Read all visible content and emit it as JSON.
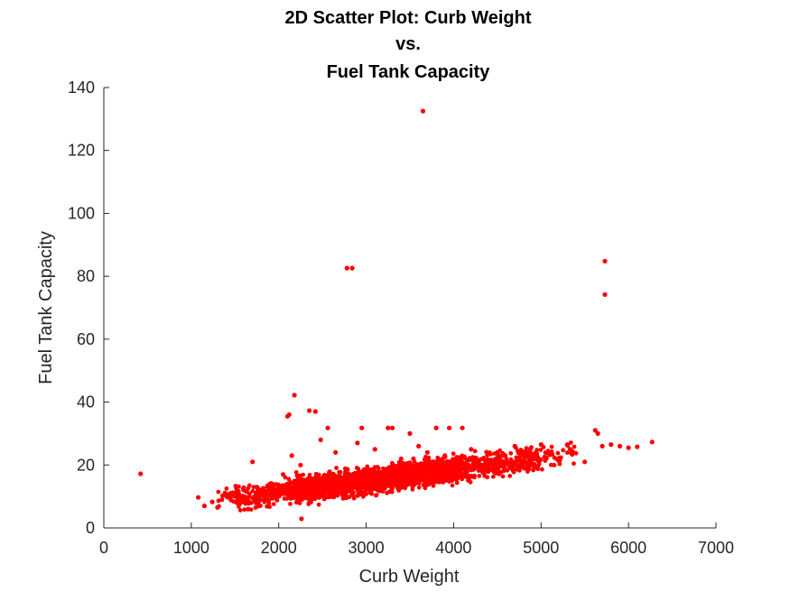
{
  "chart_data": {
    "type": "scatter",
    "title": [
      "2D Scatter Plot: Curb Weight",
      "vs.",
      "Fuel Tank Capacity"
    ],
    "xlabel": "Curb Weight",
    "ylabel": "Fuel Tank Capacity",
    "xlim": [
      0,
      7000
    ],
    "ylim": [
      0,
      140
    ],
    "xticks": [
      "0",
      "1000",
      "2000",
      "3000",
      "4000",
      "5000",
      "6000",
      "7000"
    ],
    "yticks": [
      "0",
      "20",
      "40",
      "60",
      "80",
      "100",
      "120",
      "140"
    ],
    "grid": false,
    "marker_color": "#ff0000",
    "series": [
      {
        "values": [
          [
            420,
            17.2
          ],
          [
            1080,
            9.7
          ],
          [
            1150,
            7.0
          ],
          [
            1240,
            8.3
          ],
          [
            1300,
            6.5
          ],
          [
            1350,
            9.0
          ],
          [
            1450,
            11.0
          ],
          [
            1500,
            10.0
          ],
          [
            1600,
            12.0
          ],
          [
            1650,
            6.0
          ],
          [
            1700,
            21.0
          ],
          [
            1750,
            13.0
          ],
          [
            1800,
            11.5
          ],
          [
            1900,
            14.0
          ],
          [
            2000,
            13.0
          ],
          [
            2050,
            17.0
          ],
          [
            2100,
            35.5
          ],
          [
            2120,
            36.0
          ],
          [
            2150,
            23.0
          ],
          [
            2180,
            42.2
          ],
          [
            2250,
            20.0
          ],
          [
            2260,
            2.9
          ],
          [
            2350,
            37.3
          ],
          [
            2420,
            37.0
          ],
          [
            2480,
            28.0
          ],
          [
            2560,
            31.8
          ],
          [
            2650,
            24.0
          ],
          [
            2780,
            82.6
          ],
          [
            2840,
            82.6
          ],
          [
            2900,
            27.0
          ],
          [
            2950,
            31.8
          ],
          [
            3100,
            25.0
          ],
          [
            3250,
            31.8
          ],
          [
            3300,
            31.8
          ],
          [
            3400,
            22.0
          ],
          [
            3500,
            30.0
          ],
          [
            3540,
            22.0
          ],
          [
            3600,
            26.0
          ],
          [
            3650,
            132.5
          ],
          [
            3700,
            24.0
          ],
          [
            3800,
            31.8
          ],
          [
            3900,
            23.0
          ],
          [
            3950,
            31.8
          ],
          [
            4100,
            31.8
          ],
          [
            4200,
            25.0
          ],
          [
            4300,
            20.0
          ],
          [
            4500,
            24.0
          ],
          [
            4700,
            26.0
          ],
          [
            4850,
            23.0
          ],
          [
            5000,
            26.5
          ],
          [
            5150,
            20.0
          ],
          [
            5300,
            26.5
          ],
          [
            5500,
            21.0
          ],
          [
            5620,
            31.0
          ],
          [
            5650,
            30.0
          ],
          [
            5700,
            26.0
          ],
          [
            5730,
            84.8
          ],
          [
            5730,
            74.2
          ],
          [
            5800,
            26.5
          ],
          [
            5900,
            26.0
          ],
          [
            6000,
            25.5
          ],
          [
            6100,
            25.8
          ],
          [
            6270,
            27.3
          ]
        ]
      }
    ]
  }
}
